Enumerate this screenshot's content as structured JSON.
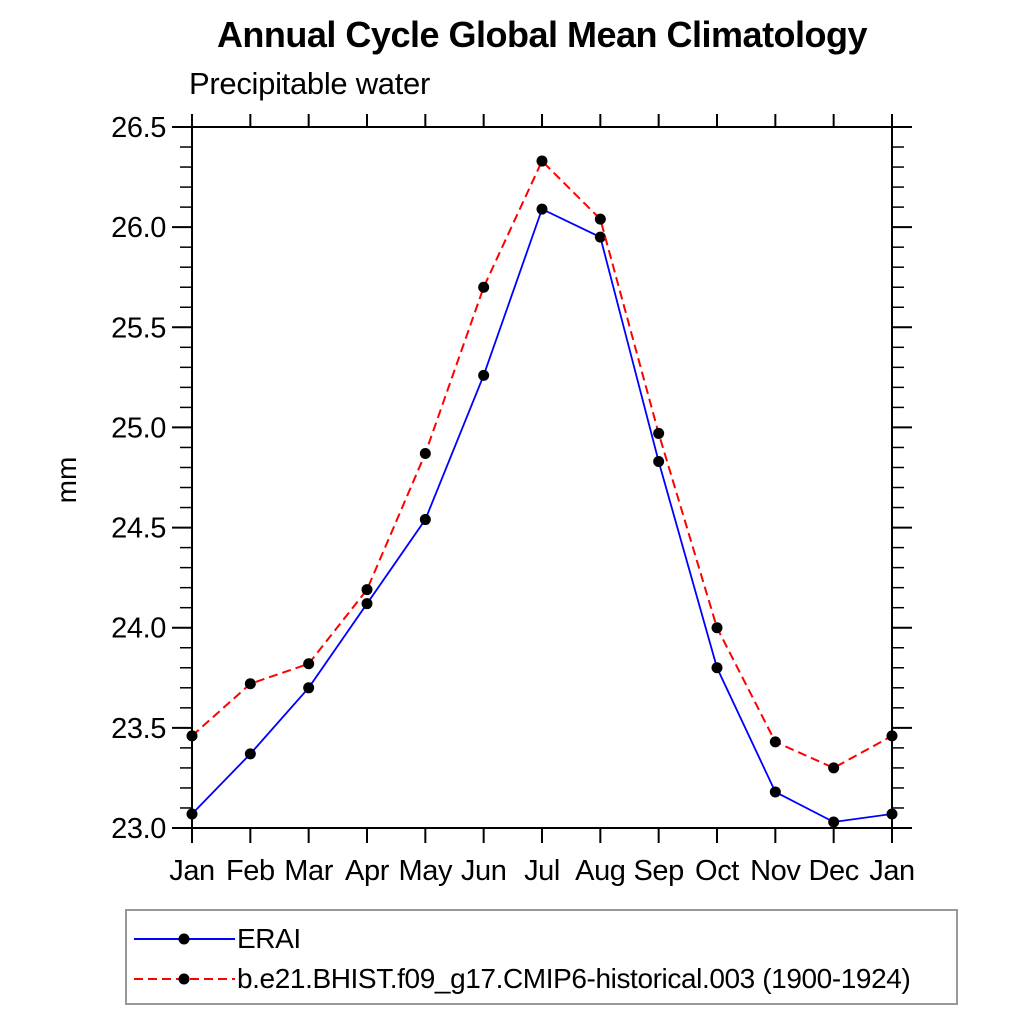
{
  "title": "Annual Cycle Global Mean Climatology",
  "subtitle": "Precipitable water",
  "chart_data": {
    "type": "line",
    "x_categories": [
      "Jan",
      "Feb",
      "Mar",
      "Apr",
      "May",
      "Jun",
      "Jul",
      "Aug",
      "Sep",
      "Oct",
      "Nov",
      "Dec",
      "Jan"
    ],
    "ylabel": "mm",
    "ylim": [
      23.0,
      26.5
    ],
    "ytick_step": 0.5,
    "yminor_step": 0.1,
    "ytick_labels": [
      "23.0",
      "23.5",
      "24.0",
      "24.5",
      "25.0",
      "25.5",
      "26.0",
      "26.5"
    ],
    "grid": false,
    "legend_position": "bottom-left-box",
    "series": [
      {
        "name": "ERAI",
        "color": "#0000ff",
        "line_style": "solid",
        "marker": "filled-circle",
        "marker_color": "#000000",
        "values": [
          23.07,
          23.37,
          23.7,
          24.12,
          24.54,
          25.26,
          26.09,
          25.95,
          24.83,
          23.8,
          23.18,
          23.03,
          23.07
        ]
      },
      {
        "name": "b.e21.BHIST.f09_g17.CMIP6-historical.003 (1900-1924)",
        "color": "#ff0000",
        "line_style": "dashed",
        "marker": "filled-circle",
        "marker_color": "#000000",
        "values": [
          23.46,
          23.72,
          23.82,
          24.19,
          24.87,
          25.7,
          26.33,
          26.04,
          24.97,
          24.0,
          23.43,
          23.3,
          23.46
        ]
      }
    ]
  },
  "colors": {
    "background": "#ffffff",
    "axis": "#000000",
    "text": "#000000",
    "legend_border": "#999999",
    "erai_line": "#0000ff",
    "model_line": "#ff0000",
    "marker": "#000000"
  }
}
